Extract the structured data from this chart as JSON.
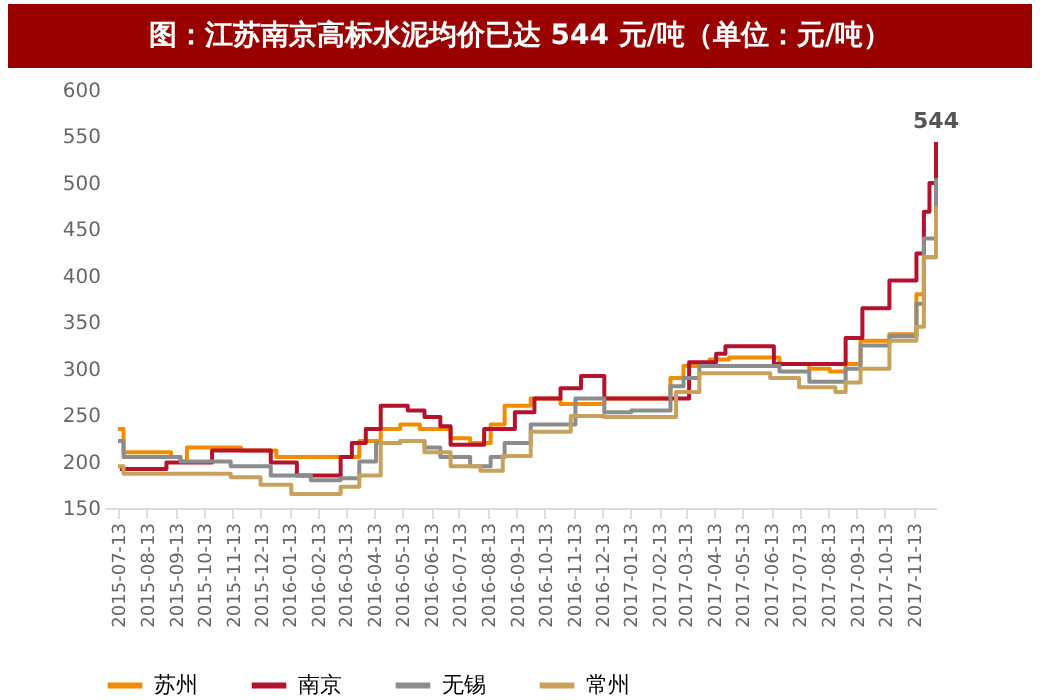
{
  "chart_data": {
    "type": "step",
    "title": "图：江苏南京高标水泥均价已达 544 元/吨（单位：元/吨）",
    "xlim": [
      "2015-06-28",
      "2017-12-07"
    ],
    "xticks": [
      "2015-07-13",
      "2015-08-13",
      "2015-09-13",
      "2015-10-13",
      "2015-11-13",
      "2015-12-13",
      "2016-01-13",
      "2016-02-13",
      "2016-03-13",
      "2016-04-13",
      "2016-05-13",
      "2016-06-13",
      "2016-07-13",
      "2016-08-13",
      "2016-09-13",
      "2016-10-13",
      "2016-11-13",
      "2016-12-13",
      "2017-01-13",
      "2017-02-13",
      "2017-03-13",
      "2017-04-13",
      "2017-05-13",
      "2017-06-13",
      "2017-07-13",
      "2017-08-13",
      "2017-09-13",
      "2017-10-13",
      "2017-11-13"
    ],
    "ylim": [
      150,
      600
    ],
    "yticks": [
      150,
      200,
      250,
      300,
      350,
      400,
      450,
      500,
      550,
      600
    ],
    "grid": false,
    "legend": "bottom",
    "annotations": [
      {
        "text": "544",
        "x": "2017-12-07",
        "y": 544
      }
    ],
    "series": [
      {
        "name": "苏州",
        "color": "#f28c00",
        "x": [
          "2015-07-13",
          "2015-07-19",
          "2015-09-08",
          "2015-09-18",
          "2015-09-25",
          "2015-11-22",
          "2015-12-30",
          "2016-03-08",
          "2016-03-28",
          "2016-04-20",
          "2016-05-11",
          "2016-06-01",
          "2016-07-04",
          "2016-07-25",
          "2016-08-16",
          "2016-08-31",
          "2016-09-28",
          "2016-10-30",
          "2016-12-16",
          "2017-02-25",
          "2017-03-11",
          "2017-04-08",
          "2017-04-29",
          "2017-06-22",
          "2017-07-24",
          "2017-08-15",
          "2017-09-01",
          "2017-09-17",
          "2017-10-18",
          "2017-11-16",
          "2017-11-24",
          "2017-12-07"
        ],
        "values": [
          235,
          210,
          205,
          200,
          215,
          212,
          205,
          205,
          222,
          235,
          240,
          235,
          225,
          220,
          240,
          260,
          268,
          262,
          268,
          290,
          303,
          310,
          312,
          305,
          300,
          297,
          305,
          330,
          337,
          380,
          420,
          520
        ]
      },
      {
        "name": "南京",
        "color": "#b5122e",
        "x": [
          "2015-07-15",
          "2015-09-03",
          "2015-10-22",
          "2015-12-24",
          "2016-01-21",
          "2016-03-08",
          "2016-03-20",
          "2016-04-04",
          "2016-04-20",
          "2016-05-19",
          "2016-06-06",
          "2016-06-23",
          "2016-07-04",
          "2016-08-09",
          "2016-09-11",
          "2016-10-02",
          "2016-10-30",
          "2016-11-21",
          "2016-12-16",
          "2017-03-17",
          "2017-04-15",
          "2017-04-25",
          "2017-06-16",
          "2017-09-01",
          "2017-09-19",
          "2017-10-18",
          "2017-11-16",
          "2017-11-24",
          "2017-11-30",
          "2017-12-07"
        ],
        "values": [
          192,
          199,
          212,
          199,
          185,
          205,
          220,
          235,
          260,
          255,
          248,
          238,
          218,
          235,
          253,
          268,
          279,
          292,
          268,
          307,
          316,
          324,
          305,
          333,
          365,
          395,
          424,
          469,
          500,
          544
        ]
      },
      {
        "name": "无锡",
        "color": "#8c8c8c",
        "x": [
          "2015-07-13",
          "2015-07-19",
          "2015-09-18",
          "2015-11-11",
          "2015-12-24",
          "2016-02-05",
          "2016-03-08",
          "2016-03-28",
          "2016-04-15",
          "2016-05-11",
          "2016-06-06",
          "2016-06-23",
          "2016-07-25",
          "2016-08-16",
          "2016-08-31",
          "2016-09-28",
          "2016-11-15",
          "2016-12-16",
          "2017-01-14",
          "2017-02-25",
          "2017-03-11",
          "2017-03-28",
          "2017-06-22",
          "2017-07-24",
          "2017-09-01",
          "2017-09-17",
          "2017-10-18",
          "2017-11-16",
          "2017-11-24",
          "2017-12-07"
        ],
        "values": [
          222,
          205,
          200,
          195,
          185,
          180,
          182,
          200,
          220,
          222,
          215,
          205,
          195,
          205,
          220,
          240,
          268,
          253,
          255,
          281,
          290,
          303,
          297,
          286,
          300,
          325,
          335,
          370,
          440,
          505
        ]
      },
      {
        "name": "常州",
        "color": "#c9a15a",
        "x": [
          "2015-07-13",
          "2015-07-19",
          "2015-09-18",
          "2015-11-11",
          "2015-12-13",
          "2016-01-15",
          "2016-03-08",
          "2016-03-28",
          "2016-04-20",
          "2016-05-11",
          "2016-06-06",
          "2016-07-04",
          "2016-08-05",
          "2016-08-29",
          "2016-09-28",
          "2016-11-10",
          "2016-12-16",
          "2017-02-22",
          "2017-03-03",
          "2017-03-28",
          "2017-06-12",
          "2017-07-13",
          "2017-08-21",
          "2017-09-01",
          "2017-09-17",
          "2017-10-18",
          "2017-11-16",
          "2017-11-24",
          "2017-12-07"
        ],
        "values": [
          195,
          187,
          187,
          183,
          175,
          165,
          173,
          185,
          220,
          222,
          210,
          195,
          190,
          206,
          232,
          249,
          248,
          248,
          275,
          295,
          290,
          280,
          275,
          285,
          300,
          330,
          345,
          420,
          475
        ]
      }
    ]
  }
}
